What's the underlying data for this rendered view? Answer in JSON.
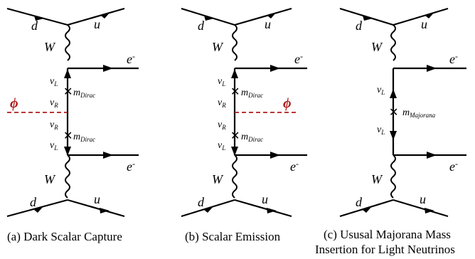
{
  "diagrams": [
    {
      "id": "a",
      "caption": "(a) Dark Scalar Capture",
      "labels": {
        "d_top": "d",
        "u_top": "u",
        "w_top": "W",
        "e_top": "e",
        "nuL_top": "ν",
        "nuL_top_sub": "L",
        "mass_top": "m",
        "mass_top_sub": "Dirac",
        "nuR_top": "ν",
        "nuR_top_sub": "R",
        "phi": "ϕ",
        "nuR_bot": "ν",
        "nuR_bot_sub": "R",
        "mass_bot": "m",
        "mass_bot_sub": "Dirac",
        "nuL_bot": "ν",
        "nuL_bot_sub": "L",
        "e_bot": "e",
        "w_bot": "W",
        "d_bot": "d",
        "u_bot": "u"
      }
    },
    {
      "id": "b",
      "caption": "(b) Scalar Emission",
      "labels": {
        "d_top": "d",
        "u_top": "u",
        "w_top": "W",
        "e_top": "e",
        "nuL_top": "ν",
        "nuL_top_sub": "L",
        "mass_top": "m",
        "mass_top_sub": "Dirac",
        "nuR_top": "ν",
        "nuR_top_sub": "R",
        "phi": "ϕ",
        "nuR_bot": "ν",
        "nuR_bot_sub": "R",
        "mass_bot": "m",
        "mass_bot_sub": "Dirac",
        "nuL_bot": "ν",
        "nuL_bot_sub": "L",
        "e_bot": "e",
        "w_bot": "W",
        "d_bot": "d",
        "u_bot": "u"
      }
    },
    {
      "id": "c",
      "caption_line1": "(c) Ususal Majorana Mass",
      "caption_line2": "Insertion for Light Neutrinos",
      "labels": {
        "d_top": "d",
        "u_top": "u",
        "w_top": "W",
        "e_top": "e",
        "nuL_top": "ν",
        "nuL_top_sub": "L",
        "mass": "m",
        "mass_sub": "Majorana",
        "nuL_bot": "ν",
        "nuL_bot_sub": "L",
        "e_bot": "e",
        "w_bot": "W",
        "d_bot": "d",
        "u_bot": "u"
      }
    }
  ],
  "symbols": {
    "electron_charge": "-",
    "cross": "✕"
  },
  "colors": {
    "line": "#000000",
    "scalar": "#b01a1a"
  }
}
